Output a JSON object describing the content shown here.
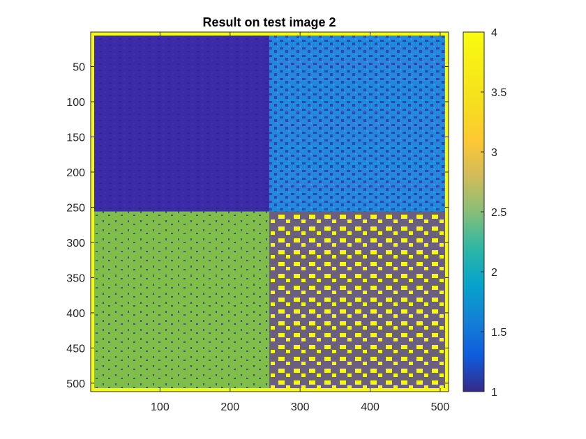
{
  "chart_data": {
    "type": "heatmap",
    "title": "Result on test image 2",
    "x_ticks": [
      100,
      200,
      300,
      400,
      500
    ],
    "y_ticks": [
      50,
      100,
      150,
      200,
      250,
      300,
      350,
      400,
      450,
      500
    ],
    "xlim": [
      1,
      512
    ],
    "ylim": [
      1,
      512
    ],
    "y_reversed": true,
    "colorbar": {
      "range": [
        1,
        4
      ],
      "ticks": [
        1,
        1.5,
        2,
        2.5,
        3,
        3.5,
        4
      ],
      "tick_labels": [
        "1",
        "1.5",
        "2",
        "2.5",
        "3",
        "3.5",
        "4"
      ],
      "colormap": "parula"
    },
    "class_colors": {
      "1": "#3c2ba6",
      "2": "#2389dd",
      "3": "#7fbe48",
      "4": "#f8fa0d"
    },
    "regions": [
      {
        "name": "top-left block",
        "x": [
          1,
          256
        ],
        "y": [
          1,
          256
        ],
        "value": 1
      },
      {
        "name": "top-right block",
        "x": [
          256,
          512
        ],
        "y": [
          1,
          256
        ],
        "value": 2
      },
      {
        "name": "bottom-left block",
        "x": [
          1,
          256
        ],
        "y": [
          256,
          512
        ],
        "value": 3
      },
      {
        "name": "bottom-right block",
        "x": [
          256,
          512
        ],
        "y": [
          256,
          512
        ],
        "value": 4
      }
    ]
  }
}
